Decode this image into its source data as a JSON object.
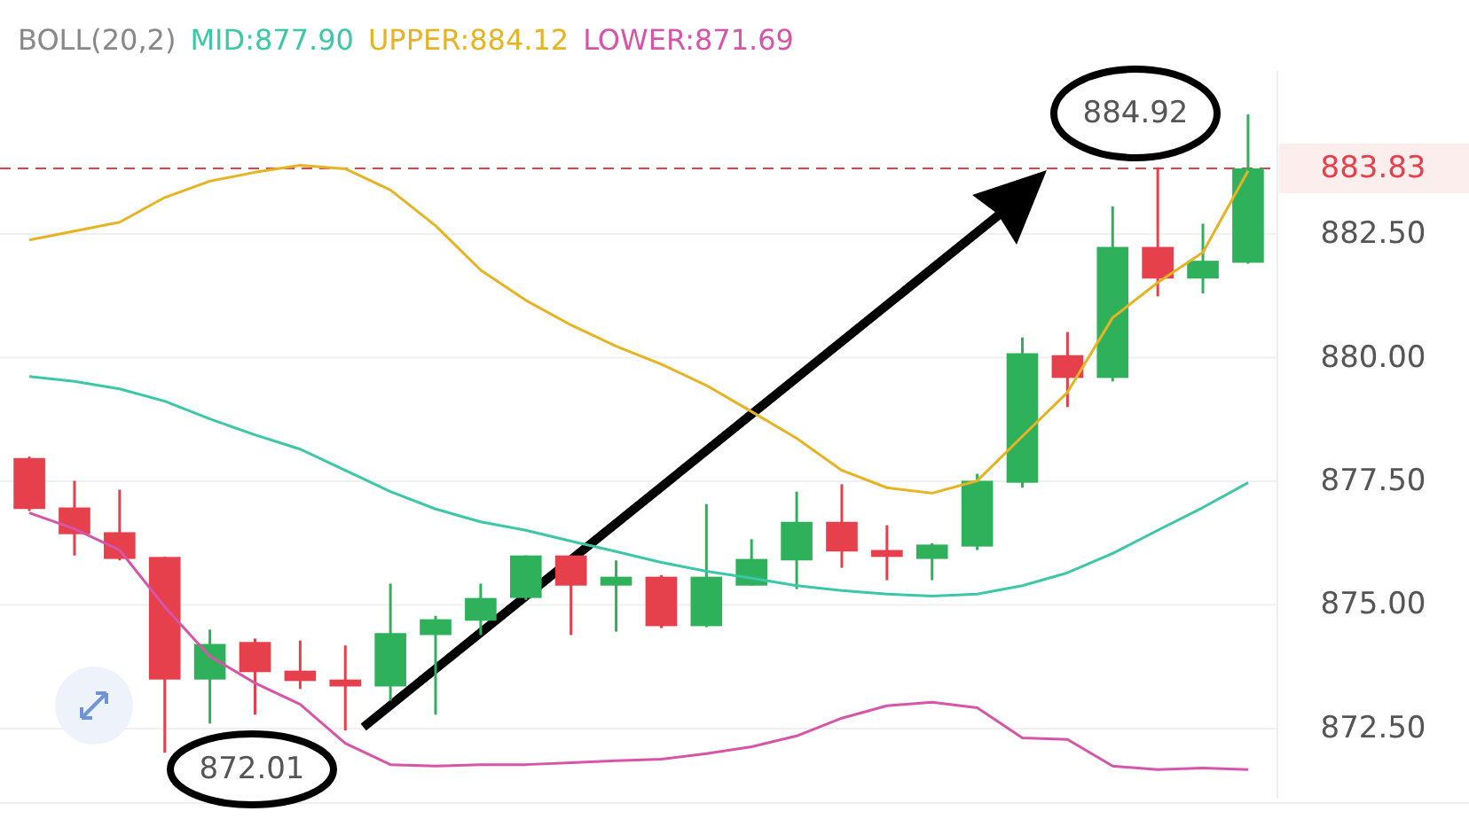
{
  "chart_data": {
    "type": "candlestick",
    "title": "BOLL(20,2)",
    "categories": [
      null,
      null,
      null,
      null,
      null,
      null,
      null,
      null,
      null,
      null,
      null,
      null,
      null,
      null,
      null,
      null,
      null,
      null,
      null,
      null,
      null,
      null,
      null,
      null,
      null,
      null,
      null,
      null
    ],
    "ohlc": [
      [
        877.97,
        878.0,
        876.9,
        876.94
      ],
      [
        876.97,
        877.51,
        876.0,
        876.43
      ],
      [
        876.47,
        877.33,
        875.9,
        875.93
      ],
      [
        875.97,
        875.97,
        872.01,
        873.49
      ],
      [
        873.49,
        874.5,
        872.6,
        874.21
      ],
      [
        874.25,
        874.32,
        872.78,
        873.64
      ],
      [
        873.67,
        874.28,
        873.3,
        873.46
      ],
      [
        873.49,
        874.18,
        872.46,
        873.35
      ],
      [
        873.35,
        875.43,
        873.06,
        874.43
      ],
      [
        874.39,
        874.78,
        872.78,
        874.71
      ],
      [
        874.68,
        875.43,
        874.39,
        875.14
      ],
      [
        875.14,
        876.0,
        875.1,
        876.0
      ],
      [
        876.0,
        876.0,
        874.39,
        875.39
      ],
      [
        875.39,
        875.9,
        874.46,
        875.57
      ],
      [
        875.57,
        875.6,
        874.53,
        874.57
      ],
      [
        874.57,
        877.04,
        874.55,
        875.57
      ],
      [
        875.39,
        876.33,
        875.39,
        875.93
      ],
      [
        875.9,
        877.29,
        875.32,
        876.68
      ],
      [
        876.68,
        877.44,
        875.75,
        876.08
      ],
      [
        876.11,
        876.61,
        875.5,
        875.97
      ],
      [
        875.93,
        876.25,
        875.5,
        876.22
      ],
      [
        876.18,
        877.65,
        876.11,
        877.51
      ],
      [
        877.47,
        880.41,
        877.37,
        880.09
      ],
      [
        880.05,
        880.52,
        879.0,
        879.59
      ],
      [
        879.59,
        883.06,
        879.52,
        882.24
      ],
      [
        882.24,
        883.85,
        881.24,
        881.6
      ],
      [
        881.6,
        882.71,
        881.3,
        881.96
      ],
      [
        881.92,
        884.92,
        881.9,
        883.83
      ]
    ],
    "colors": [
      "#e5404c",
      "#e5404c",
      "#e5404c",
      "#e5404c",
      "#2eb15a",
      "#e5404c",
      "#e5404c",
      "#e5404c",
      "#2eb15a",
      "#2eb15a",
      "#2eb15a",
      "#2eb15a",
      "#e5404c",
      "#2eb15a",
      "#e5404c",
      "#2eb15a",
      "#2eb15a",
      "#2eb15a",
      "#e5404c",
      "#e5404c",
      "#2eb15a",
      "#2eb15a",
      "#2eb15a",
      "#e5404c",
      "#2eb15a",
      "#e5404c",
      "#2eb15a",
      "#2eb15a"
    ],
    "series": [
      {
        "type": "line",
        "name": "MID:877.90",
        "color": "#3cc8a8",
        "values": [
          879.62,
          879.52,
          879.37,
          879.12,
          878.76,
          878.44,
          878.15,
          877.72,
          877.29,
          876.94,
          876.68,
          876.51,
          876.29,
          876.08,
          875.86,
          875.68,
          875.54,
          875.39,
          875.29,
          875.22,
          875.18,
          875.22,
          875.39,
          875.65,
          876.04,
          876.51,
          876.97,
          877.47
        ]
      },
      {
        "type": "line",
        "name": "UPPER:884.12",
        "color": "#e6b422",
        "values": [
          882.38,
          882.56,
          882.74,
          883.24,
          883.57,
          883.75,
          883.89,
          883.82,
          883.39,
          882.67,
          881.77,
          881.16,
          880.66,
          880.23,
          879.87,
          879.44,
          878.91,
          878.37,
          877.72,
          877.37,
          877.26,
          877.51,
          878.41,
          879.3,
          880.81,
          881.52,
          882.13,
          883.78
        ]
      },
      {
        "type": "line",
        "name": "LOWER:871.69",
        "color": "#d655a8",
        "values": [
          876.86,
          876.54,
          876.11,
          874.96,
          873.96,
          873.42,
          872.99,
          872.2,
          871.77,
          871.74,
          871.77,
          871.77,
          871.81,
          871.85,
          871.88,
          871.99,
          872.13,
          872.35,
          872.71,
          872.96,
          873.03,
          872.92,
          872.31,
          872.28,
          871.74,
          871.67,
          871.7,
          871.67
        ]
      }
    ],
    "ylim": [
      871.1,
      885.8
    ],
    "yticks": [
      {
        "value": 872.5,
        "label": "872.50"
      },
      {
        "value": 875,
        "label": "875.00"
      },
      {
        "value": 877.5,
        "label": "877.50"
      },
      {
        "value": 880,
        "label": "880.00"
      },
      {
        "value": 882.5,
        "label": "882.50"
      }
    ],
    "ref_lines": [
      {
        "axis": "y",
        "value": 883.83,
        "label": "883.83",
        "color": "#e5404c",
        "line_style": "dashed"
      }
    ],
    "annotations": [
      "884.92",
      "872.01"
    ],
    "grid": "y",
    "legend": "top"
  }
}
